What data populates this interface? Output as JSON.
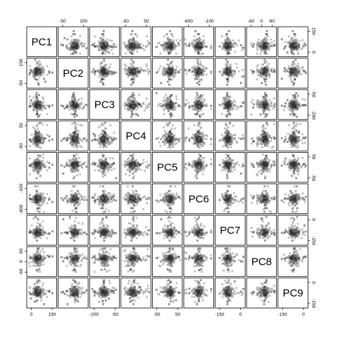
{
  "chart_data": {
    "type": "scatter",
    "subtype": "pairs-matrix",
    "variables": [
      "PC1",
      "PC2",
      "PC3",
      "PC4",
      "PC5",
      "PC6",
      "PC7",
      "PC8",
      "PC9"
    ],
    "marker": "x",
    "point_colors": [
      "#8a8a8a",
      "#333333"
    ],
    "axis_ranges": {
      "PC1": [
        -10,
        260
      ],
      "PC2": [
        -90,
        130
      ],
      "PC3": [
        -260,
        50
      ],
      "PC4": [
        -80,
        90
      ],
      "PC5": [
        -90,
        110
      ],
      "PC6": [
        -760,
        40
      ],
      "PC7": [
        -210,
        70
      ],
      "PC8": [
        -90,
        80
      ],
      "PC9": [
        -210,
        30
      ]
    },
    "ticks": {
      "top": [
        {
          "col": 1,
          "labels": [
            "-50",
            "100"
          ]
        },
        {
          "col": 3,
          "labels": [
            "-50",
            "50"
          ]
        },
        {
          "col": 5,
          "labels": [
            "-600",
            "-100"
          ]
        },
        {
          "col": 7,
          "labels": [
            "-60",
            "0",
            "60"
          ]
        }
      ],
      "bottom": [
        {
          "col": 0,
          "labels": [
            "0",
            "150"
          ]
        },
        {
          "col": 2,
          "labels": [
            "-200",
            "-50"
          ]
        },
        {
          "col": 4,
          "labels": [
            "-50",
            "50"
          ]
        },
        {
          "col": 6,
          "labels": [
            "-150",
            "0"
          ]
        },
        {
          "col": 8,
          "labels": [
            "-150",
            "0"
          ]
        }
      ],
      "left": [
        {
          "row": 1,
          "labels": [
            "-50",
            "100"
          ]
        },
        {
          "row": 3,
          "labels": [
            "-50",
            "50"
          ]
        },
        {
          "row": 5,
          "labels": [
            "-600",
            "-100"
          ]
        },
        {
          "row": 7,
          "labels": [
            "-60",
            "0",
            "60"
          ]
        }
      ],
      "right": [
        {
          "row": 0,
          "labels": [
            "0",
            "150"
          ]
        },
        {
          "row": 2,
          "labels": [
            "-200",
            "-50"
          ]
        },
        {
          "row": 4,
          "labels": [
            "-50",
            "50"
          ]
        },
        {
          "row": 6,
          "labels": [
            "-150",
            "0"
          ]
        },
        {
          "row": 8,
          "labels": [
            "-150",
            "0"
          ]
        }
      ]
    }
  }
}
